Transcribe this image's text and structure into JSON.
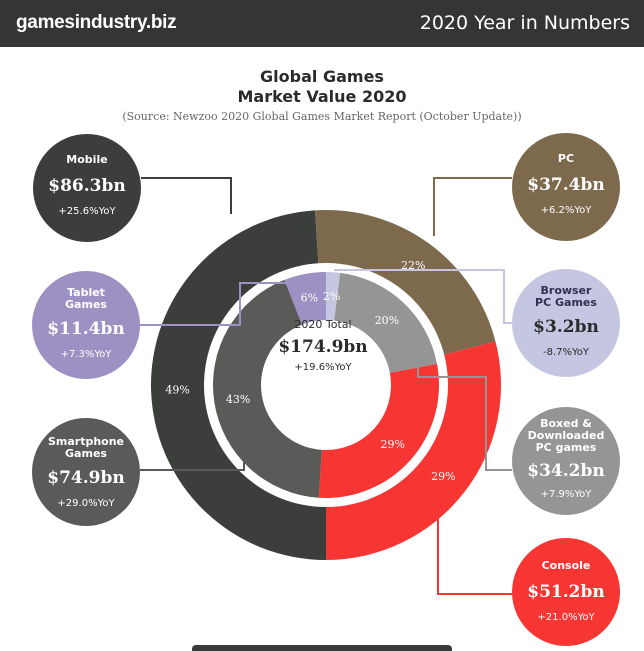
{
  "header": {
    "brand": "gamesindustry.biz",
    "title": "2020 Year in Numbers"
  },
  "title_line1": "Global Games",
  "title_line2": "Market Value 2020",
  "source": "(Source: Newzoo 2020 Global Games Market Report (October Update))",
  "center": {
    "label": "2020 Total",
    "value": "$174.9bn",
    "yoy": "+19.6%YoY"
  },
  "chart_data": [
    {
      "type": "pie",
      "ring": "outer",
      "series": [
        {
          "name": "Mobile",
          "value": 49,
          "label": "49%",
          "color": "#3b3e3b"
        },
        {
          "name": "PC",
          "value": 22,
          "label": "22%",
          "color": "#7d6a4d"
        },
        {
          "name": "Console",
          "value": 29,
          "label": "29%",
          "color": "#f73634"
        }
      ]
    },
    {
      "type": "pie",
      "ring": "inner",
      "series": [
        {
          "name": "Browser PC Games",
          "value": 2,
          "label": "2%",
          "color": "#c5c6e1"
        },
        {
          "name": "Boxed & Downloaded PC games",
          "value": 20,
          "label": "20%",
          "color": "#959595"
        },
        {
          "name": "Console",
          "value": 29,
          "label": "29%",
          "color": "#f73634"
        },
        {
          "name": "Smartphone Games",
          "value": 43,
          "label": "43%",
          "color": "#5a5b59"
        },
        {
          "name": "Tablet Games",
          "value": 6,
          "label": "6%",
          "color": "#9d91c4"
        }
      ]
    }
  ],
  "segments": {
    "mobile": {
      "name": "Mobile",
      "value": "$86.3bn",
      "yoy": "+25.6%YoY",
      "color": "#3b3e3b"
    },
    "pc": {
      "name": "PC",
      "value": "$37.4bn",
      "yoy": "+6.2%YoY",
      "color": "#7d6a4d"
    },
    "tablet": {
      "name": "Tablet\nGames",
      "value": "$11.4bn",
      "yoy": "+7.3%YoY",
      "color": "#9d91c4"
    },
    "browser": {
      "name": "Browser\nPC Games",
      "value": "$3.2bn",
      "yoy": "-8.7%YoY",
      "color": "#c5c6e1"
    },
    "smartphone": {
      "name": "Smartphone\nGames",
      "value": "$74.9bn",
      "yoy": "+29.0%YoY",
      "color": "#5a5b59"
    },
    "boxed": {
      "name": "Boxed &\nDownloaded\nPC games",
      "value": "$34.2bn",
      "yoy": "+7.9%YoY",
      "color": "#959595"
    },
    "console": {
      "name": "Console",
      "value": "$51.2bn",
      "yoy": "+21.0%YoY",
      "color": "#f73634"
    }
  }
}
